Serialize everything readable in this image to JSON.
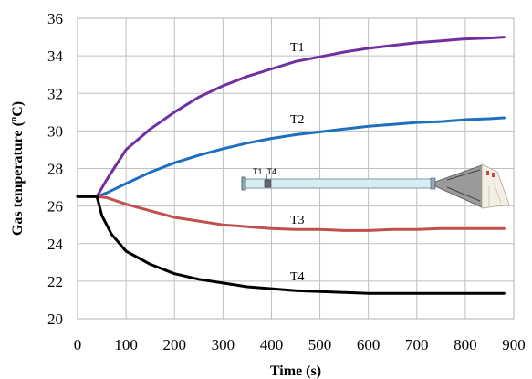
{
  "chart_data": {
    "type": "line",
    "title": "",
    "xlabel": "Time (s)",
    "ylabel": "Gas temperature (ºC)",
    "xlim": [
      0,
      900
    ],
    "ylim": [
      20,
      36
    ],
    "xticks": [
      0,
      100,
      200,
      300,
      400,
      500,
      600,
      700,
      800,
      900
    ],
    "yticks": [
      20,
      22,
      24,
      26,
      28,
      30,
      32,
      34,
      36
    ],
    "grid": true,
    "legend": "none",
    "series": [
      {
        "name": "T1",
        "color": "#7030a0",
        "x": [
          0,
          40,
          60,
          100,
          150,
          200,
          250,
          300,
          350,
          400,
          450,
          500,
          550,
          600,
          650,
          700,
          750,
          800,
          850,
          880
        ],
        "y": [
          26.5,
          26.5,
          27.4,
          29.0,
          30.1,
          31.0,
          31.8,
          32.4,
          32.9,
          33.3,
          33.7,
          33.95,
          34.2,
          34.4,
          34.55,
          34.7,
          34.8,
          34.9,
          34.95,
          35.0
        ]
      },
      {
        "name": "T2",
        "color": "#1f6fbf",
        "x": [
          0,
          40,
          60,
          100,
          150,
          200,
          250,
          300,
          350,
          400,
          450,
          500,
          550,
          600,
          650,
          700,
          750,
          800,
          850,
          880
        ],
        "y": [
          26.5,
          26.5,
          26.7,
          27.2,
          27.8,
          28.3,
          28.7,
          29.05,
          29.35,
          29.6,
          29.8,
          29.95,
          30.1,
          30.25,
          30.35,
          30.45,
          30.5,
          30.6,
          30.65,
          30.7
        ]
      },
      {
        "name": "T3",
        "color": "#c0504d",
        "x": [
          0,
          40,
          60,
          100,
          150,
          200,
          250,
          300,
          350,
          400,
          450,
          500,
          550,
          600,
          650,
          700,
          750,
          800,
          850,
          880
        ],
        "y": [
          26.5,
          26.5,
          26.45,
          26.1,
          25.75,
          25.4,
          25.2,
          25.0,
          24.9,
          24.8,
          24.75,
          24.75,
          24.7,
          24.7,
          24.75,
          24.75,
          24.8,
          24.8,
          24.8,
          24.8
        ]
      },
      {
        "name": "T4",
        "color": "#000000",
        "x": [
          0,
          40,
          50,
          70,
          100,
          150,
          200,
          250,
          300,
          350,
          400,
          450,
          500,
          550,
          600,
          650,
          700,
          750,
          800,
          850,
          880
        ],
        "y": [
          26.5,
          26.5,
          25.5,
          24.5,
          23.6,
          22.9,
          22.4,
          22.1,
          21.9,
          21.7,
          21.6,
          21.5,
          21.45,
          21.4,
          21.35,
          21.35,
          21.35,
          21.35,
          21.35,
          21.35,
          21.35
        ]
      }
    ],
    "annotations": [
      {
        "text": "T1",
        "x": 550,
        "y": 34.5,
        "series": "T1"
      },
      {
        "text": "T2",
        "x": 550,
        "y": 30.5,
        "series": "T2"
      },
      {
        "text": "T3",
        "x": 560,
        "y": 24.2,
        "series": "T3"
      },
      {
        "text": "T4",
        "x": 575,
        "y": 22.3,
        "series": "T4"
      }
    ],
    "inset": {
      "label": "T1..T4",
      "description_icon": "duct-with-fan-diagram"
    }
  }
}
